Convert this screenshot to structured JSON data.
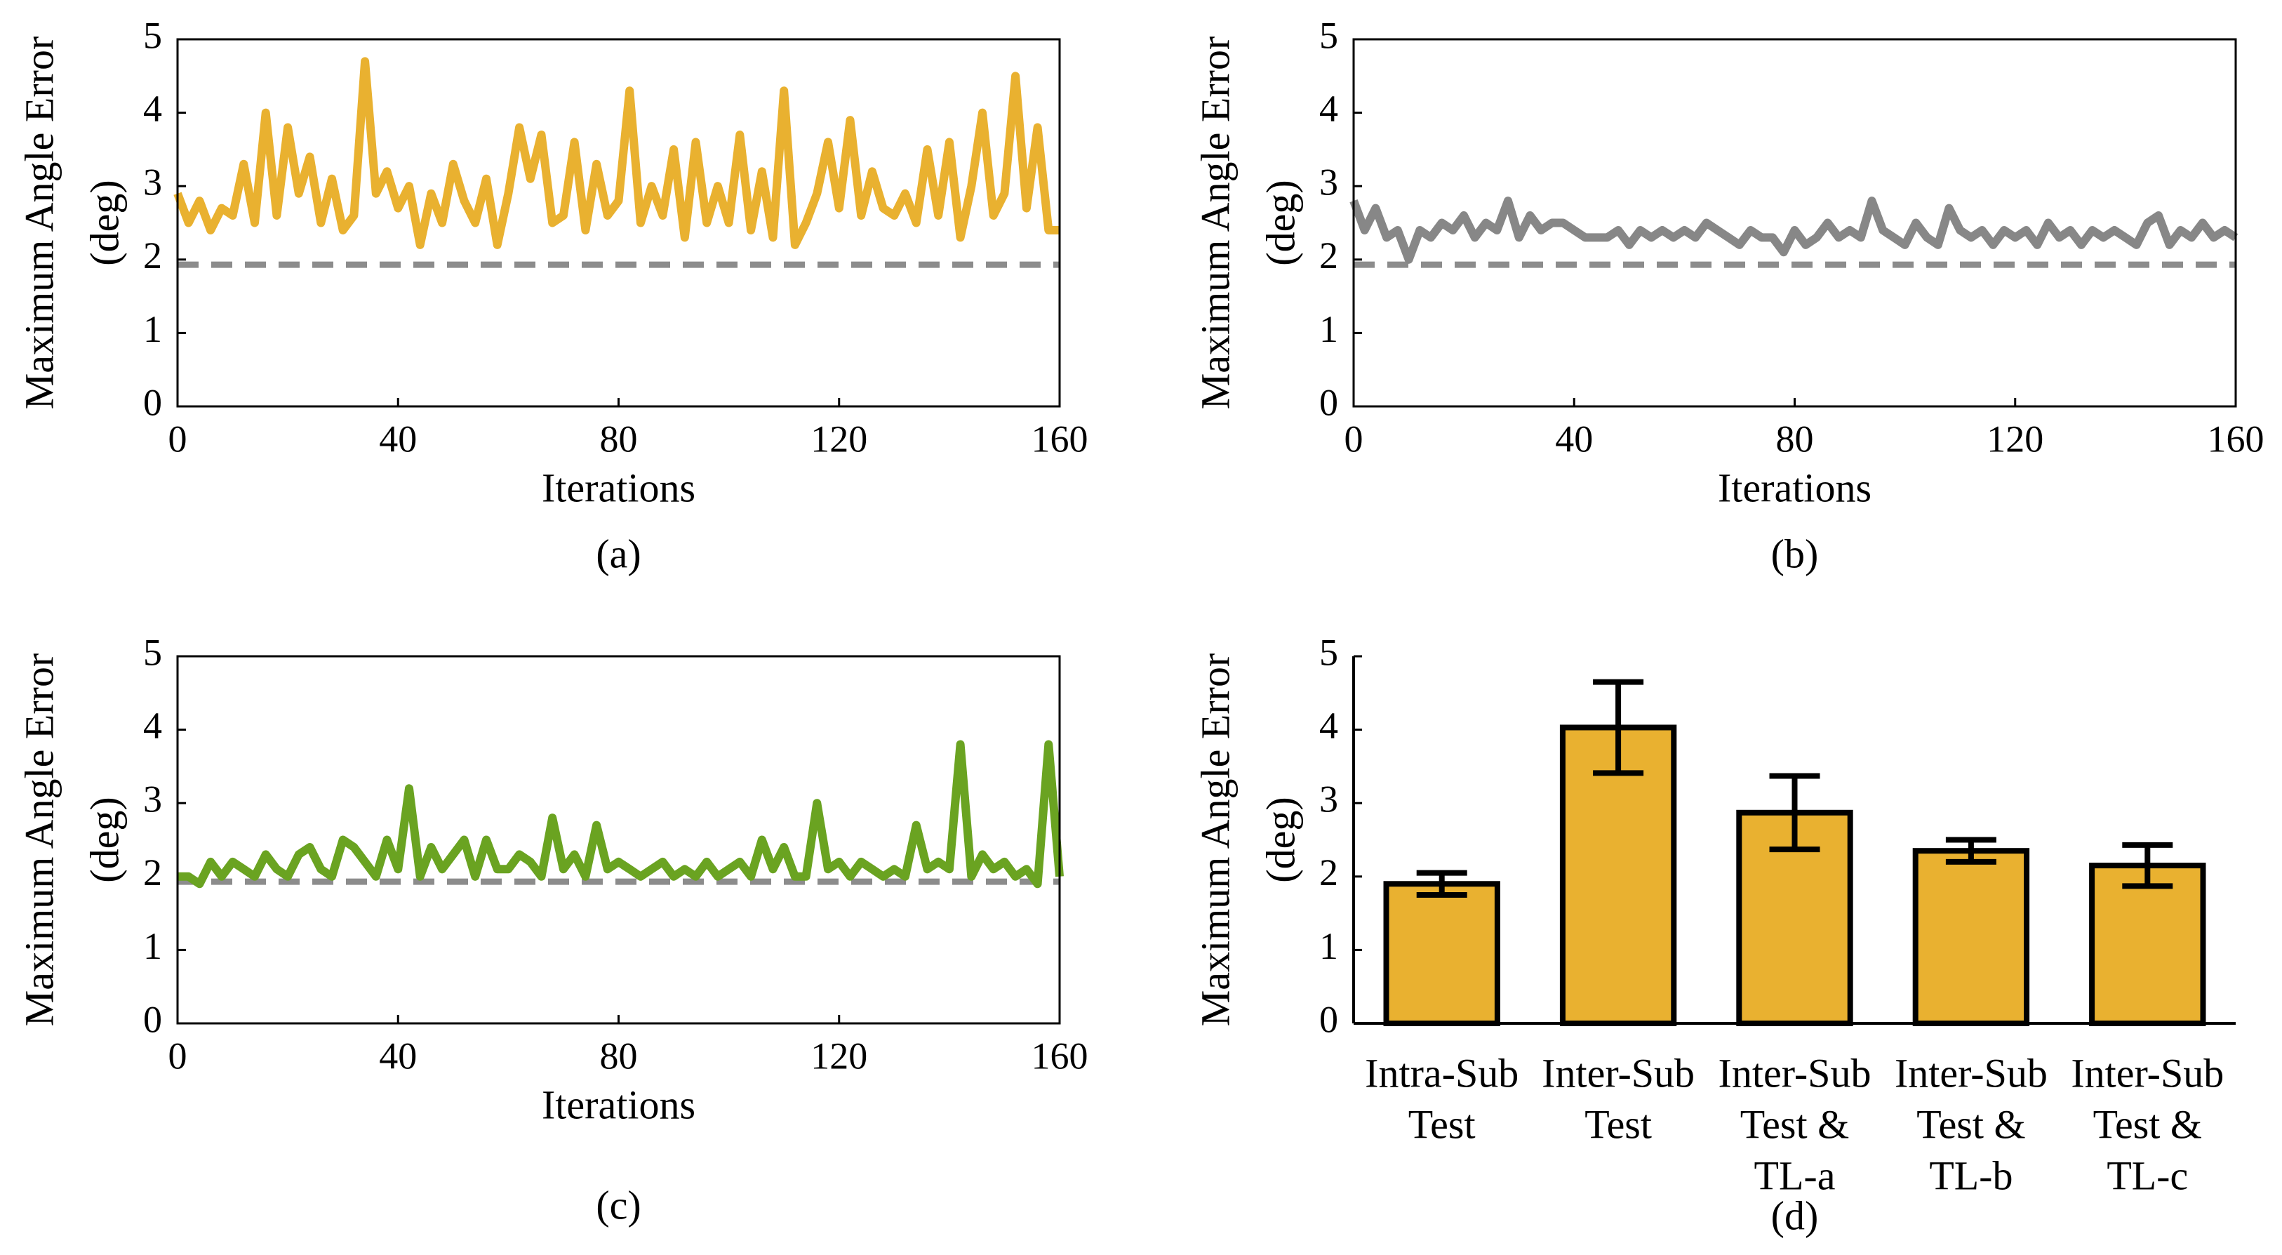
{
  "chart_data": [
    {
      "type": "line",
      "caption": "(a)",
      "ylabel": [
        "Maximum Angle Error",
        "(deg)"
      ],
      "xlabel": "Iterations",
      "xlim": [
        0,
        160
      ],
      "xticks": [
        0,
        40,
        80,
        120,
        160
      ],
      "ylim": [
        0,
        5
      ],
      "yticks": [
        0,
        1,
        2,
        3,
        4,
        5
      ],
      "reference_line": 1.93,
      "reference_color": "#8c8c8c",
      "x": [
        0,
        2,
        4,
        6,
        8,
        10,
        12,
        14,
        16,
        18,
        20,
        22,
        24,
        26,
        28,
        30,
        32,
        34,
        36,
        38,
        40,
        42,
        44,
        46,
        48,
        50,
        52,
        54,
        56,
        58,
        60,
        62,
        64,
        66,
        68,
        70,
        72,
        74,
        76,
        78,
        80,
        82,
        84,
        86,
        88,
        90,
        92,
        94,
        96,
        98,
        100,
        102,
        104,
        106,
        108,
        110,
        112,
        114,
        116,
        118,
        120,
        122,
        124,
        126,
        128,
        130,
        132,
        134,
        136,
        138,
        140,
        142,
        144,
        146,
        148,
        150,
        152,
        154,
        156,
        158,
        160
      ],
      "series": [
        {
          "color": "#e9b130",
          "values": [
            2.9,
            2.5,
            2.8,
            2.4,
            2.7,
            2.6,
            3.3,
            2.5,
            4.0,
            2.6,
            3.8,
            2.9,
            3.4,
            2.5,
            3.1,
            2.4,
            2.6,
            4.7,
            2.9,
            3.2,
            2.7,
            3.0,
            2.2,
            2.9,
            2.5,
            3.3,
            2.8,
            2.5,
            3.1,
            2.2,
            2.9,
            3.8,
            3.1,
            3.7,
            2.5,
            2.6,
            3.6,
            2.4,
            3.3,
            2.6,
            2.8,
            4.3,
            2.5,
            3.0,
            2.6,
            3.5,
            2.3,
            3.6,
            2.5,
            3.0,
            2.5,
            3.7,
            2.4,
            3.2,
            2.3,
            4.3,
            2.2,
            2.5,
            2.9,
            3.6,
            2.7,
            3.9,
            2.6,
            3.2,
            2.7,
            2.6,
            2.9,
            2.5,
            3.5,
            2.6,
            3.6,
            2.3,
            3.0,
            4.0,
            2.6,
            2.9,
            4.5,
            2.7,
            3.8,
            2.4,
            2.4
          ]
        }
      ]
    },
    {
      "type": "line",
      "caption": "(b)",
      "ylabel": [
        "Maximum Angle Error",
        "(deg)"
      ],
      "xlabel": "Iterations",
      "xlim": [
        0,
        160
      ],
      "xticks": [
        0,
        40,
        80,
        120,
        160
      ],
      "ylim": [
        0,
        5
      ],
      "yticks": [
        0,
        1,
        2,
        3,
        4,
        5
      ],
      "reference_line": 1.93,
      "reference_color": "#8c8c8c",
      "x": [
        0,
        2,
        4,
        6,
        8,
        10,
        12,
        14,
        16,
        18,
        20,
        22,
        24,
        26,
        28,
        30,
        32,
        34,
        36,
        38,
        40,
        42,
        44,
        46,
        48,
        50,
        52,
        54,
        56,
        58,
        60,
        62,
        64,
        66,
        68,
        70,
        72,
        74,
        76,
        78,
        80,
        82,
        84,
        86,
        88,
        90,
        92,
        94,
        96,
        98,
        100,
        102,
        104,
        106,
        108,
        110,
        112,
        114,
        116,
        118,
        120,
        122,
        124,
        126,
        128,
        130,
        132,
        134,
        136,
        138,
        140,
        142,
        144,
        146,
        148,
        150,
        152,
        154,
        156,
        158,
        160
      ],
      "series": [
        {
          "color": "#878787",
          "values": [
            2.8,
            2.4,
            2.7,
            2.3,
            2.4,
            2.0,
            2.4,
            2.3,
            2.5,
            2.4,
            2.6,
            2.3,
            2.5,
            2.4,
            2.8,
            2.3,
            2.6,
            2.4,
            2.5,
            2.5,
            2.4,
            2.3,
            2.3,
            2.3,
            2.4,
            2.2,
            2.4,
            2.3,
            2.4,
            2.3,
            2.4,
            2.3,
            2.5,
            2.4,
            2.3,
            2.2,
            2.4,
            2.3,
            2.3,
            2.1,
            2.4,
            2.2,
            2.3,
            2.5,
            2.3,
            2.4,
            2.3,
            2.8,
            2.4,
            2.3,
            2.2,
            2.5,
            2.3,
            2.2,
            2.7,
            2.4,
            2.3,
            2.4,
            2.2,
            2.4,
            2.3,
            2.4,
            2.2,
            2.5,
            2.3,
            2.4,
            2.2,
            2.4,
            2.3,
            2.4,
            2.3,
            2.2,
            2.5,
            2.6,
            2.2,
            2.4,
            2.3,
            2.5,
            2.3,
            2.4,
            2.3
          ]
        }
      ]
    },
    {
      "type": "line",
      "caption": "(c)",
      "ylabel": [
        "Maximum Angle Error",
        "(deg)"
      ],
      "xlabel": "Iterations",
      "xlim": [
        0,
        160
      ],
      "xticks": [
        0,
        40,
        80,
        120,
        160
      ],
      "ylim": [
        0,
        5
      ],
      "yticks": [
        0,
        1,
        2,
        3,
        4,
        5
      ],
      "reference_line": 1.93,
      "reference_color": "#8c8c8c",
      "x": [
        0,
        2,
        4,
        6,
        8,
        10,
        12,
        14,
        16,
        18,
        20,
        22,
        24,
        26,
        28,
        30,
        32,
        34,
        36,
        38,
        40,
        42,
        44,
        46,
        48,
        50,
        52,
        54,
        56,
        58,
        60,
        62,
        64,
        66,
        68,
        70,
        72,
        74,
        76,
        78,
        80,
        82,
        84,
        86,
        88,
        90,
        92,
        94,
        96,
        98,
        100,
        102,
        104,
        106,
        108,
        110,
        112,
        114,
        116,
        118,
        120,
        122,
        124,
        126,
        128,
        130,
        132,
        134,
        136,
        138,
        140,
        142,
        144,
        146,
        148,
        150,
        152,
        154,
        156,
        158,
        160
      ],
      "series": [
        {
          "color": "#6aa321",
          "values": [
            2.0,
            2.0,
            1.9,
            2.2,
            2.0,
            2.2,
            2.1,
            2.0,
            2.3,
            2.1,
            2.0,
            2.3,
            2.4,
            2.1,
            2.0,
            2.5,
            2.4,
            2.2,
            2.0,
            2.5,
            2.1,
            3.2,
            2.0,
            2.4,
            2.1,
            2.3,
            2.5,
            2.0,
            2.5,
            2.1,
            2.1,
            2.3,
            2.2,
            2.0,
            2.8,
            2.1,
            2.3,
            2.0,
            2.7,
            2.1,
            2.2,
            2.1,
            2.0,
            2.1,
            2.2,
            2.0,
            2.1,
            2.0,
            2.2,
            2.0,
            2.1,
            2.2,
            2.0,
            2.5,
            2.1,
            2.4,
            2.0,
            2.0,
            3.0,
            2.1,
            2.2,
            2.0,
            2.2,
            2.1,
            2.0,
            2.1,
            2.0,
            2.7,
            2.1,
            2.2,
            2.1,
            3.8,
            2.0,
            2.3,
            2.1,
            2.2,
            2.0,
            2.1,
            1.9,
            3.8,
            2.0
          ]
        }
      ]
    },
    {
      "type": "bar",
      "caption": "(d)",
      "ylabel": [
        "Maximum Angle Error",
        "(deg)"
      ],
      "ylim": [
        0,
        5
      ],
      "yticks": [
        0,
        1,
        2,
        3,
        4,
        5
      ],
      "color": "#e9b130",
      "categories": [
        [
          "Intra-Sub",
          "Test"
        ],
        [
          "Inter-Sub",
          "Test"
        ],
        [
          "Inter-Sub",
          "Test &",
          "TL-a"
        ],
        [
          "Inter-Sub",
          "Test &",
          "TL-b"
        ],
        [
          "Inter-Sub",
          "Test &",
          "TL-c"
        ]
      ],
      "values": [
        1.9,
        4.03,
        2.87,
        2.35,
        2.15
      ],
      "errors": [
        0.15,
        0.62,
        0.5,
        0.15,
        0.28
      ]
    }
  ]
}
